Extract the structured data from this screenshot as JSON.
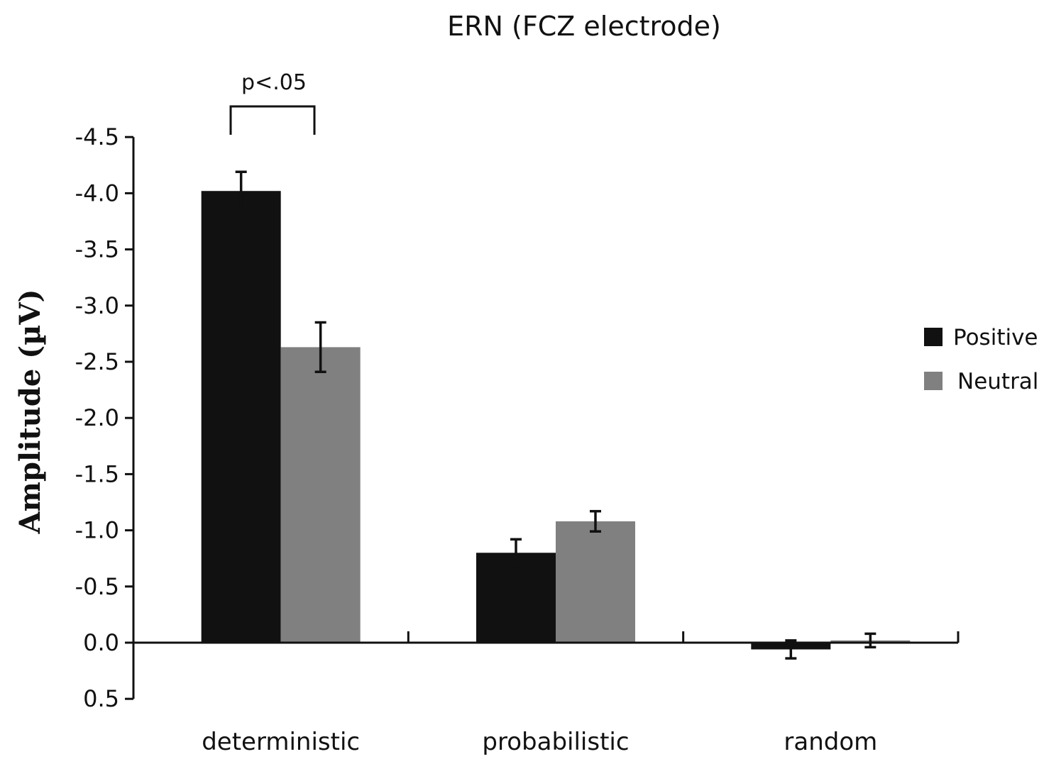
{
  "chart_data": {
    "type": "bar",
    "title": "ERN (FCZ electrode)",
    "xlabel": "",
    "ylabel": "Amplitude (µV)",
    "ylim": [
      0.5,
      -4.5
    ],
    "y_inverted": true,
    "yticks": [
      "-4.5",
      "-4.0",
      "-3.5",
      "-3.0",
      "-2.5",
      "-2.0",
      "-1.5",
      "-1.0",
      "-0.5",
      "0.0",
      "0.5"
    ],
    "ytick_values": [
      -4.5,
      -4.0,
      -3.5,
      -3.0,
      -2.5,
      -2.0,
      -1.5,
      -1.0,
      -0.5,
      0.0,
      0.5
    ],
    "categories": [
      "deterministic",
      "probabilistic",
      "random"
    ],
    "series": [
      {
        "name": "Positive",
        "color": "#111111",
        "values": [
          -4.02,
          -0.8,
          0.06
        ],
        "errors": [
          0.17,
          0.12,
          0.08
        ]
      },
      {
        "name": "Neutral",
        "color": "#808080",
        "values": [
          -2.63,
          -1.08,
          -0.02
        ],
        "errors": [
          0.22,
          0.09,
          0.06
        ]
      }
    ],
    "legend_position": "right",
    "grid": false,
    "annotations": [
      {
        "text": "p<.05",
        "category": "deterministic",
        "type": "significance-bracket"
      }
    ]
  }
}
